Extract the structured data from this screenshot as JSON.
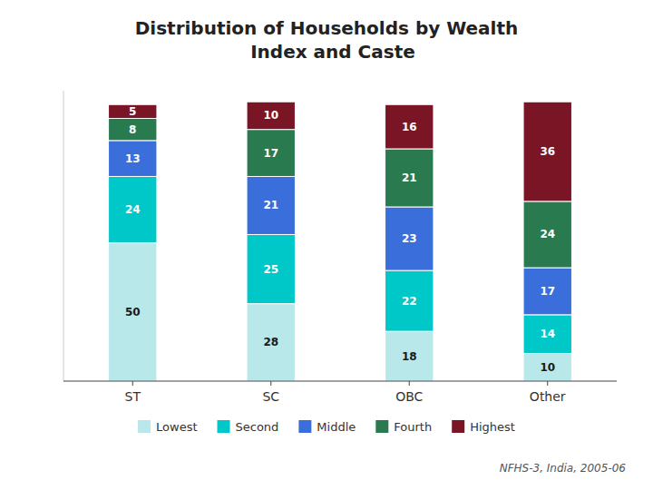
{
  "chart_data": {
    "type": "bar",
    "stacked": true,
    "title": "Distribution of Households by Wealth\n  Index and Caste",
    "categories": [
      "ST",
      "SC",
      "OBC",
      "Other"
    ],
    "series": [
      {
        "name": "Lowest",
        "color": "#b8e8ea",
        "values": [
          50,
          28,
          18,
          10
        ]
      },
      {
        "name": "Second",
        "color": "#00c8c8",
        "values": [
          24,
          25,
          22,
          14
        ]
      },
      {
        "name": "Middle",
        "color": "#3a6fdb",
        "values": [
          13,
          21,
          23,
          17
        ]
      },
      {
        "name": "Fourth",
        "color": "#2a7a50",
        "values": [
          8,
          17,
          21,
          24
        ]
      },
      {
        "name": "Highest",
        "color": "#7a1525",
        "values": [
          5,
          10,
          16,
          36
        ]
      }
    ],
    "ylim": [
      0,
      105
    ],
    "grid": false,
    "legend": "bottom",
    "data_labels": true,
    "tick_labels": "x",
    "annotations": [
      "NFHS-3, India, 2005-06"
    ]
  }
}
